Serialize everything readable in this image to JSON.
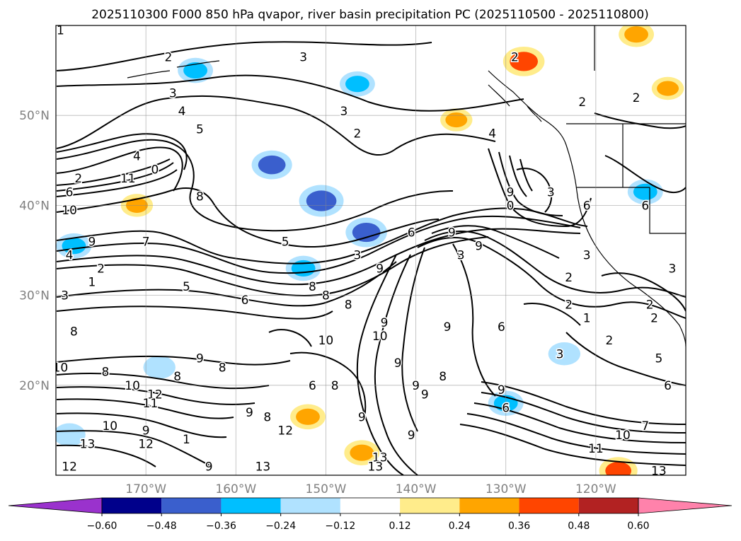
{
  "chart_data": {
    "type": "heatmap",
    "title": "2025110300 F000 850 hPa qvapor, river basin precipitation PC (2025110500 - 2025110800)",
    "lon_range": [
      -180,
      -110
    ],
    "lat_range": [
      10,
      60
    ],
    "x_ticks": [
      {
        "lon": -170,
        "label": "170°W"
      },
      {
        "lon": -160,
        "label": "160°W"
      },
      {
        "lon": -150,
        "label": "150°W"
      },
      {
        "lon": -140,
        "label": "140°W"
      },
      {
        "lon": -130,
        "label": "130°W"
      },
      {
        "lon": -120,
        "label": "120°W"
      }
    ],
    "y_ticks": [
      {
        "lat": 50,
        "label": "50°N"
      },
      {
        "lat": 40,
        "label": "40°N"
      },
      {
        "lat": 30,
        "label": "30°N"
      },
      {
        "lat": 20,
        "label": "20°N"
      }
    ],
    "grid": true,
    "colorbar": {
      "position": "bottom",
      "extend": "both",
      "boundaries": [
        -0.6,
        -0.48,
        -0.36,
        -0.24,
        -0.12,
        0.12,
        0.24,
        0.36,
        0.48,
        0.6
      ],
      "tick_labels": [
        "−0.60",
        "−0.48",
        "−0.36",
        "−0.24",
        "−0.12",
        "0.12",
        "0.24",
        "0.36",
        "0.48",
        "0.60"
      ],
      "colors": [
        "#9a32cd",
        "#00008b",
        "#3a5fcd",
        "#00bfff",
        "#b0e2ff",
        "#ffffff",
        "#ffec8b",
        "#ffa500",
        "#ff4500",
        "#b22222",
        "#ff82ab"
      ]
    },
    "shaded_features": [
      {
        "name": "negative-blob-bc-ocean",
        "lon": -146.5,
        "lat": 53.5,
        "value": -0.3
      },
      {
        "name": "negative-blob-gulf-alaska",
        "lon": -164.5,
        "lat": 55.0,
        "value": -0.3
      },
      {
        "name": "negative-blob-mid-pacific",
        "lon": -150.5,
        "lat": 40.5,
        "value": -0.48
      },
      {
        "name": "negative-blob-north-pacific",
        "lon": -156.0,
        "lat": 44.5,
        "value": -0.4
      },
      {
        "name": "negative-blob-subtropical",
        "lon": -152.5,
        "lat": 33.0,
        "value": -0.3
      },
      {
        "name": "negative-blob-west-pacific",
        "lon": -178.0,
        "lat": 35.5,
        "value": -0.3
      },
      {
        "name": "negative-blob-cal-coast",
        "lon": -114.5,
        "lat": 41.5,
        "value": -0.3
      },
      {
        "name": "negative-blob-hawaii-east",
        "lon": -130.0,
        "lat": 18.0,
        "value": -0.3
      },
      {
        "name": "negative-blob-west",
        "lon": -168.5,
        "lat": 22.0,
        "value": -0.24
      },
      {
        "name": "negative-blob-south-west",
        "lon": -178.5,
        "lat": 14.5,
        "value": -0.24
      },
      {
        "name": "negative-blob-125w",
        "lon": -123.5,
        "lat": 23.5,
        "value": -0.24
      },
      {
        "name": "negative-blob-145w",
        "lon": -145.5,
        "lat": 37.0,
        "value": -0.42
      },
      {
        "name": "positive-blob-bc",
        "lon": -128.0,
        "lat": 56.0,
        "value": 0.42
      },
      {
        "name": "positive-blob-northeast",
        "lon": -115.5,
        "lat": 59.0,
        "value": 0.3
      },
      {
        "name": "positive-blob-east",
        "lon": -112.0,
        "lat": 53.0,
        "value": 0.24
      },
      {
        "name": "positive-blob-south",
        "lon": -146.0,
        "lat": 12.5,
        "value": 0.3
      },
      {
        "name": "positive-blob-135w",
        "lon": -135.5,
        "lat": 49.5,
        "value": 0.24
      },
      {
        "name": "positive-blob-118w-south",
        "lon": -117.5,
        "lat": 10.5,
        "value": 0.36
      },
      {
        "name": "positive-blob-152w",
        "lon": -152.0,
        "lat": 16.5,
        "value": 0.3
      },
      {
        "name": "positive-blob-west",
        "lon": -171.0,
        "lat": 40.0,
        "value": 0.24
      }
    ],
    "contour_labels": [
      {
        "lon": -179.5,
        "lat": 59.5,
        "text": "1"
      },
      {
        "lon": -167.5,
        "lat": 56.5,
        "text": "2"
      },
      {
        "lon": -152.5,
        "lat": 56.5,
        "text": "3"
      },
      {
        "lon": -129.0,
        "lat": 56.5,
        "text": "2"
      },
      {
        "lon": -167.0,
        "lat": 52.5,
        "text": "3"
      },
      {
        "lon": -166.0,
        "lat": 50.5,
        "text": "4"
      },
      {
        "lon": -148.0,
        "lat": 50.5,
        "text": "3"
      },
      {
        "lon": -121.5,
        "lat": 51.5,
        "text": "2"
      },
      {
        "lon": -115.5,
        "lat": 52.0,
        "text": "2"
      },
      {
        "lon": -164.0,
        "lat": 48.5,
        "text": "5"
      },
      {
        "lon": -146.5,
        "lat": 48.0,
        "text": "2"
      },
      {
        "lon": -131.5,
        "lat": 48.0,
        "text": "4"
      },
      {
        "lon": -171.0,
        "lat": 45.5,
        "text": "4"
      },
      {
        "lon": -177.5,
        "lat": 43.0,
        "text": "2"
      },
      {
        "lon": -172.0,
        "lat": 43.0,
        "text": "11"
      },
      {
        "lon": -169.0,
        "lat": 44.0,
        "text": "0"
      },
      {
        "lon": -129.5,
        "lat": 41.5,
        "text": "9"
      },
      {
        "lon": -125.0,
        "lat": 41.5,
        "text": "3"
      },
      {
        "lon": -178.5,
        "lat": 41.5,
        "text": "6"
      },
      {
        "lon": -164.0,
        "lat": 41.0,
        "text": "8"
      },
      {
        "lon": -178.5,
        "lat": 39.5,
        "text": "10"
      },
      {
        "lon": -129.5,
        "lat": 40.0,
        "text": "0"
      },
      {
        "lon": -121.0,
        "lat": 40.0,
        "text": "6"
      },
      {
        "lon": -114.5,
        "lat": 40.0,
        "text": "6"
      },
      {
        "lon": -176.0,
        "lat": 36.0,
        "text": "9"
      },
      {
        "lon": -170.0,
        "lat": 36.0,
        "text": "7"
      },
      {
        "lon": -140.5,
        "lat": 37.0,
        "text": "6"
      },
      {
        "lon": -136.0,
        "lat": 37.0,
        "text": "9"
      },
      {
        "lon": -133.0,
        "lat": 35.5,
        "text": "9"
      },
      {
        "lon": -154.5,
        "lat": 36.0,
        "text": "5"
      },
      {
        "lon": -178.5,
        "lat": 34.5,
        "text": "4"
      },
      {
        "lon": -146.5,
        "lat": 34.5,
        "text": "3"
      },
      {
        "lon": -135.0,
        "lat": 34.5,
        "text": "3"
      },
      {
        "lon": -121.0,
        "lat": 34.5,
        "text": "3"
      },
      {
        "lon": -175.0,
        "lat": 33.0,
        "text": "2"
      },
      {
        "lon": -144.0,
        "lat": 33.0,
        "text": "9"
      },
      {
        "lon": -111.5,
        "lat": 33.0,
        "text": "3"
      },
      {
        "lon": -176.0,
        "lat": 31.5,
        "text": "1"
      },
      {
        "lon": -165.5,
        "lat": 31.0,
        "text": "5"
      },
      {
        "lon": -151.5,
        "lat": 31.0,
        "text": "8"
      },
      {
        "lon": -150.0,
        "lat": 30.0,
        "text": "8"
      },
      {
        "lon": -123.0,
        "lat": 32.0,
        "text": "2"
      },
      {
        "lon": -179.0,
        "lat": 30.0,
        "text": "3"
      },
      {
        "lon": -159.0,
        "lat": 29.5,
        "text": "6"
      },
      {
        "lon": -147.5,
        "lat": 29.0,
        "text": "8"
      },
      {
        "lon": -123.0,
        "lat": 29.0,
        "text": "2"
      },
      {
        "lon": -114.0,
        "lat": 29.0,
        "text": "2"
      },
      {
        "lon": -121.0,
        "lat": 27.5,
        "text": "1"
      },
      {
        "lon": -113.5,
        "lat": 27.5,
        "text": "2"
      },
      {
        "lon": -143.5,
        "lat": 27.0,
        "text": "9"
      },
      {
        "lon": -136.5,
        "lat": 26.5,
        "text": "9"
      },
      {
        "lon": -130.5,
        "lat": 26.5,
        "text": "6"
      },
      {
        "lon": -178.0,
        "lat": 26.0,
        "text": "8"
      },
      {
        "lon": -150.0,
        "lat": 25.0,
        "text": "10"
      },
      {
        "lon": -144.0,
        "lat": 25.5,
        "text": "10"
      },
      {
        "lon": -118.5,
        "lat": 25.0,
        "text": "2"
      },
      {
        "lon": -124.0,
        "lat": 23.5,
        "text": "3"
      },
      {
        "lon": -113.0,
        "lat": 23.0,
        "text": "5"
      },
      {
        "lon": -164.0,
        "lat": 23.0,
        "text": "9"
      },
      {
        "lon": -161.5,
        "lat": 22.0,
        "text": "8"
      },
      {
        "lon": -142.0,
        "lat": 22.5,
        "text": "9"
      },
      {
        "lon": -179.5,
        "lat": 22.0,
        "text": "10"
      },
      {
        "lon": -174.5,
        "lat": 21.5,
        "text": "8"
      },
      {
        "lon": -166.5,
        "lat": 21.0,
        "text": "8"
      },
      {
        "lon": -137.0,
        "lat": 21.0,
        "text": "8"
      },
      {
        "lon": -151.5,
        "lat": 20.0,
        "text": "6"
      },
      {
        "lon": -149.0,
        "lat": 20.0,
        "text": "8"
      },
      {
        "lon": -140.0,
        "lat": 20.0,
        "text": "9"
      },
      {
        "lon": -130.5,
        "lat": 19.5,
        "text": "9"
      },
      {
        "lon": -112.0,
        "lat": 20.0,
        "text": "6"
      },
      {
        "lon": -171.5,
        "lat": 20.0,
        "text": "10"
      },
      {
        "lon": -169.0,
        "lat": 19.0,
        "text": "12"
      },
      {
        "lon": -169.5,
        "lat": 18.0,
        "text": "11"
      },
      {
        "lon": -139.0,
        "lat": 19.0,
        "text": "9"
      },
      {
        "lon": -130.0,
        "lat": 17.5,
        "text": "6"
      },
      {
        "lon": -158.5,
        "lat": 17.0,
        "text": "9"
      },
      {
        "lon": -156.5,
        "lat": 16.5,
        "text": "8"
      },
      {
        "lon": -146.0,
        "lat": 16.5,
        "text": "9"
      },
      {
        "lon": -174.0,
        "lat": 15.5,
        "text": "10"
      },
      {
        "lon": -170.0,
        "lat": 15.0,
        "text": "9"
      },
      {
        "lon": -154.5,
        "lat": 15.0,
        "text": "12"
      },
      {
        "lon": -165.5,
        "lat": 14.0,
        "text": "1"
      },
      {
        "lon": -176.5,
        "lat": 13.5,
        "text": "13"
      },
      {
        "lon": -170.0,
        "lat": 13.5,
        "text": "12"
      },
      {
        "lon": -140.5,
        "lat": 14.5,
        "text": "9"
      },
      {
        "lon": -117.0,
        "lat": 14.5,
        "text": "10"
      },
      {
        "lon": -114.5,
        "lat": 15.5,
        "text": "7"
      },
      {
        "lon": -144.0,
        "lat": 12.0,
        "text": "13"
      },
      {
        "lon": -120.0,
        "lat": 13.0,
        "text": "11"
      },
      {
        "lon": -178.5,
        "lat": 11.0,
        "text": "12"
      },
      {
        "lon": -163.0,
        "lat": 11.0,
        "text": "9"
      },
      {
        "lon": -157.0,
        "lat": 11.0,
        "text": "13"
      },
      {
        "lon": -144.5,
        "lat": 11.0,
        "text": "13"
      },
      {
        "lon": -113.0,
        "lat": 10.5,
        "text": "13"
      }
    ]
  }
}
